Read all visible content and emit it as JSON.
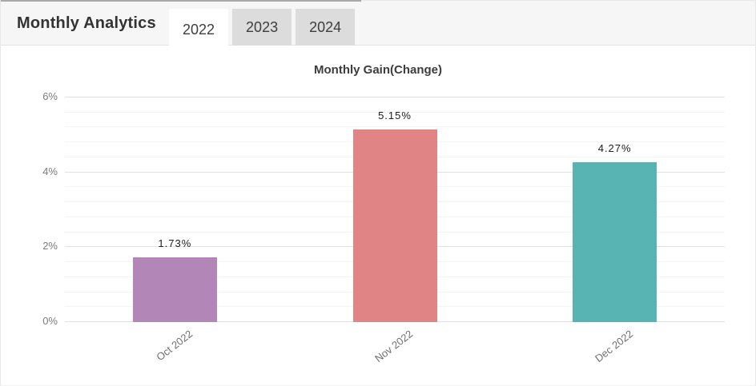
{
  "header": {
    "title": "Monthly Analytics",
    "tabs": [
      {
        "label": "2022",
        "active": true
      },
      {
        "label": "2023",
        "active": false
      },
      {
        "label": "2024",
        "active": false
      }
    ]
  },
  "chart_data": {
    "type": "bar",
    "title": "Monthly Gain(Change)",
    "categories": [
      "Oct 2022",
      "Nov 2022",
      "Dec 2022"
    ],
    "values": [
      1.73,
      5.15,
      4.27
    ],
    "value_labels": [
      "1.73%",
      "5.15%",
      "4.27%"
    ],
    "bar_colors": [
      "#b287b8",
      "#e08486",
      "#58b4b2"
    ],
    "ylim": [
      0,
      6
    ],
    "yticks": [
      0,
      2,
      4,
      6
    ],
    "ytick_labels": [
      "0%",
      "2%",
      "4%",
      "6%"
    ],
    "minor_step": 0.4,
    "grid": true,
    "legend": "none",
    "xlabel": "",
    "ylabel": ""
  }
}
